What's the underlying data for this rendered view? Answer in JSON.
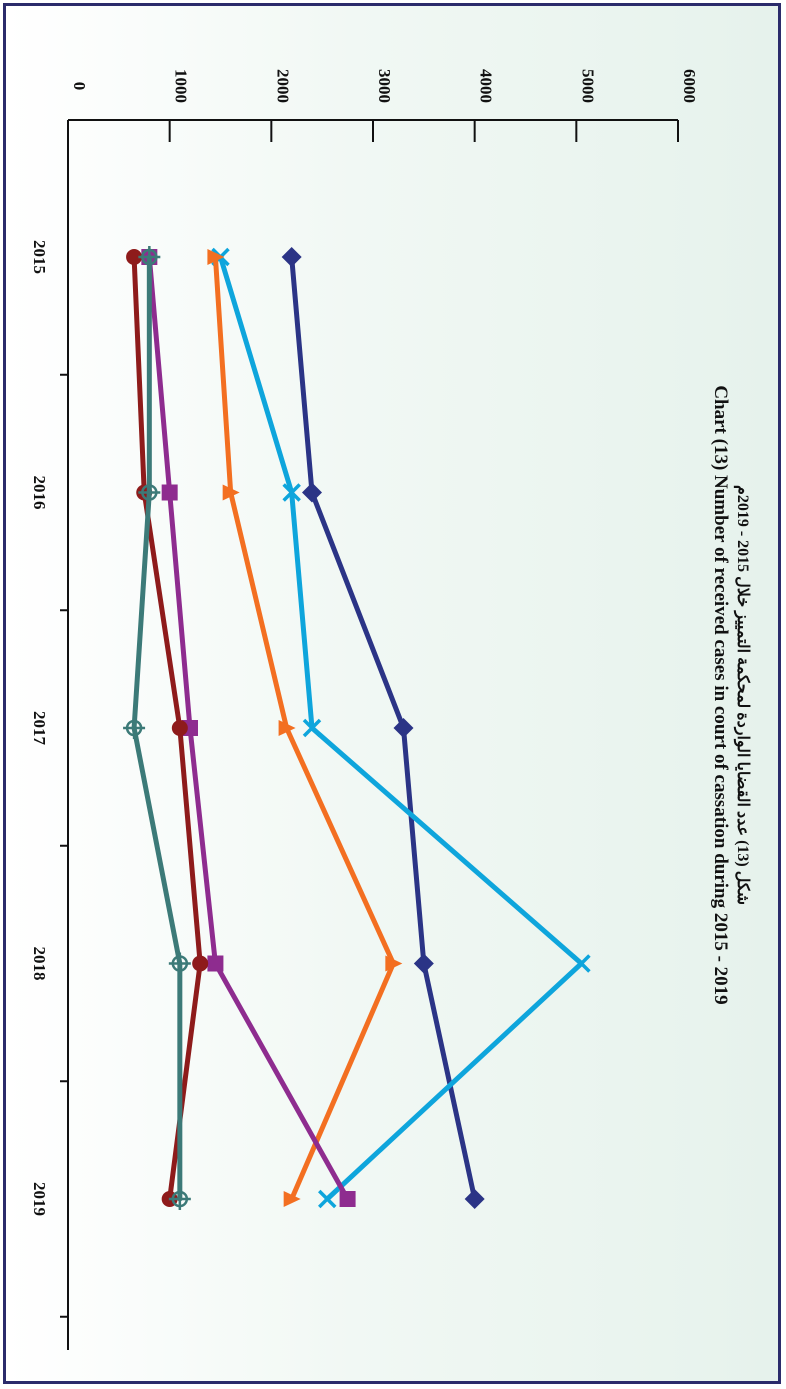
{
  "chart_data": {
    "type": "line",
    "orientation": "rotated-90-clockwise",
    "title_ar": "شكل (13) عدد القضايا الواردة لمحكمة التمييز خلال 2015 - 2019م",
    "title_en": "Chart (13) Number of received cases in court of cassation during 2015 - 2019",
    "xlabel": "",
    "ylabel": "",
    "categories": [
      "2015",
      "2016",
      "2017",
      "2018",
      "2019"
    ],
    "y_ticks": [
      "0",
      "1000",
      "2000",
      "3000",
      "4000",
      "5000",
      "6000"
    ],
    "ylim": [
      0,
      6000
    ],
    "legend": "none",
    "grid": false,
    "series": [
      {
        "marker": "diamond",
        "color": "#2b3486",
        "values": [
          2200,
          2400,
          3300,
          3500,
          4000
        ]
      },
      {
        "marker": "x",
        "color": "#0ea5dc",
        "values": [
          1500,
          2200,
          2400,
          5050,
          2550
        ]
      },
      {
        "marker": "triangle",
        "color": "#f36f21",
        "values": [
          1450,
          1600,
          2150,
          3200,
          2200
        ]
      },
      {
        "marker": "square",
        "color": "#8e2c8f",
        "values": [
          800,
          1000,
          1200,
          1450,
          2750
        ]
      },
      {
        "marker": "circle",
        "color": "#8e1b1b",
        "values": [
          650,
          750,
          1100,
          1300,
          1000
        ]
      },
      {
        "marker": "circle-cross",
        "color": "#3c7a78",
        "values": [
          800,
          800,
          650,
          1100,
          1100
        ]
      }
    ]
  }
}
